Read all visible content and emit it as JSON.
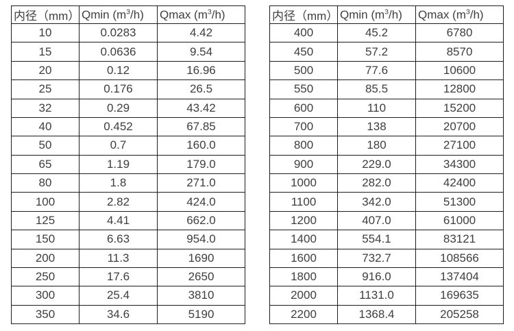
{
  "page": {
    "background_color": "#ffffff",
    "text_color": "#3e3e3e",
    "border_color": "#1c1c1c"
  },
  "chart_data": [
    {
      "type": "table",
      "title": "",
      "columns": [
        "内径（mm）",
        "Qmin (m³/h)",
        "Qmax (m³/h)"
      ],
      "rows": [
        [
          "10",
          "0.0283",
          "4.42"
        ],
        [
          "15",
          "0.0636",
          "9.54"
        ],
        [
          "20",
          "0.12",
          "16.96"
        ],
        [
          "25",
          "0.176",
          "26.5"
        ],
        [
          "32",
          "0.29",
          "43.42"
        ],
        [
          "40",
          "0.452",
          "67.85"
        ],
        [
          "50",
          "0.7",
          "160.0"
        ],
        [
          "65",
          "1.19",
          "179.0"
        ],
        [
          "80",
          "1.8",
          "271.0"
        ],
        [
          "100",
          "2.82",
          "424.0"
        ],
        [
          "125",
          "4.41",
          "662.0"
        ],
        [
          "150",
          "6.63",
          "954.0"
        ],
        [
          "200",
          "11.3",
          "1690"
        ],
        [
          "250",
          "17.6",
          "2650"
        ],
        [
          "300",
          "25.4",
          "3810"
        ],
        [
          "350",
          "34.6",
          "5190"
        ]
      ]
    },
    {
      "type": "table",
      "title": "",
      "columns": [
        "内径（mm）",
        "Qmin (m³/h)",
        "Qmax (m³/h)"
      ],
      "rows": [
        [
          "400",
          "45.2",
          "6780"
        ],
        [
          "450",
          "57.2",
          "8570"
        ],
        [
          "500",
          "77.6",
          "10600"
        ],
        [
          "550",
          "85.5",
          "12800"
        ],
        [
          "600",
          "110",
          "15200"
        ],
        [
          "700",
          "138",
          "20700"
        ],
        [
          "800",
          "180",
          "27100"
        ],
        [
          "900",
          "229.0",
          "34300"
        ],
        [
          "1000",
          "282.0",
          "42400"
        ],
        [
          "1100",
          "342.0",
          "51300"
        ],
        [
          "1200",
          "407.0",
          "61000"
        ],
        [
          "1400",
          "554.1",
          "83121"
        ],
        [
          "1600",
          "732.7",
          "108566"
        ],
        [
          "1800",
          "916.0",
          "137404"
        ],
        [
          "2000",
          "1131.0",
          "169635"
        ],
        [
          "2200",
          "1368.4",
          "205258"
        ]
      ]
    }
  ]
}
